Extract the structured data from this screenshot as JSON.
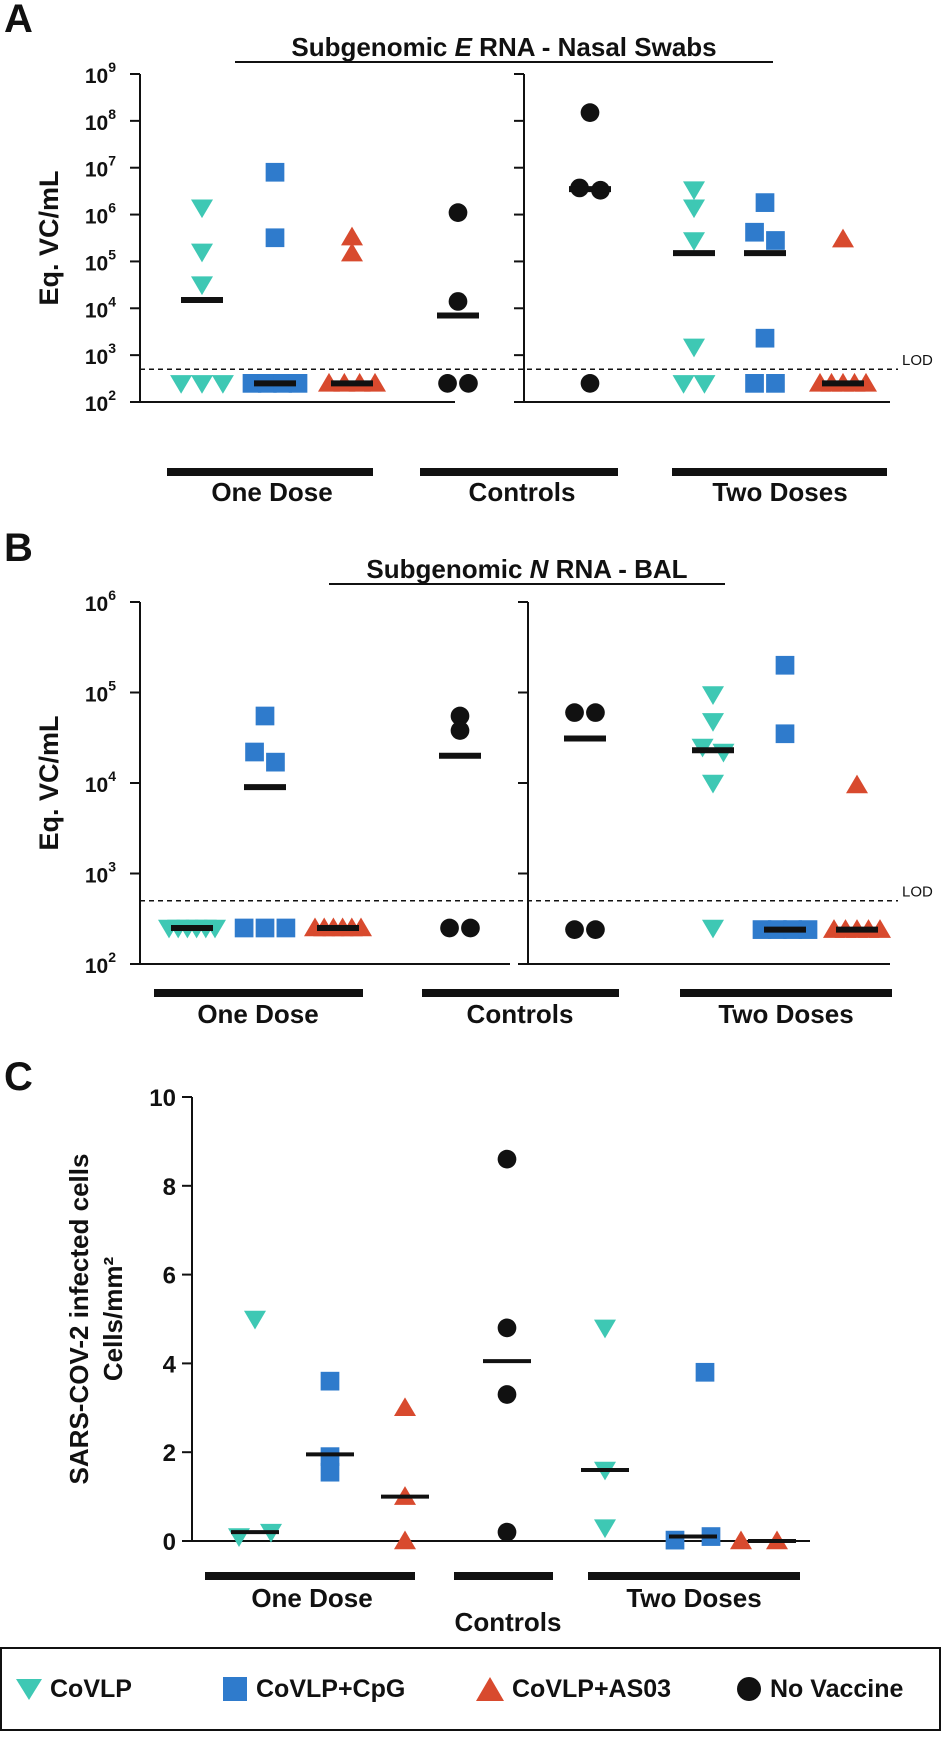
{
  "chart_data": [
    {
      "panel_label": "A",
      "type": "scatter",
      "title_parts": [
        "Subgenomic ",
        "E",
        " RNA - Nasal Swabs"
      ],
      "ylabel": "Eq. VC/mL",
      "yscale": "log",
      "ylim": [
        100,
        1000000000
      ],
      "y_ticks": [
        {
          "base": "10",
          "exp": "9"
        },
        {
          "base": "10",
          "exp": "8"
        },
        {
          "base": "10",
          "exp": "7"
        },
        {
          "base": "10",
          "exp": "6"
        },
        {
          "base": "10",
          "exp": "5"
        },
        {
          "base": "10",
          "exp": "4"
        },
        {
          "base": "10",
          "exp": "3"
        },
        {
          "base": "10",
          "exp": "2"
        }
      ],
      "lod": {
        "label": "LOD",
        "value": 500
      },
      "group_labels": [
        "One Dose",
        "Controls",
        "Two Doses"
      ],
      "series": [
        {
          "name": "One Dose CoVLP",
          "group": "One Dose",
          "marker": "CoVLP",
          "median": 15000,
          "values": [
            1400000,
            160000,
            32000,
            250,
            250,
            250
          ]
        },
        {
          "name": "One Dose CoVLP+CpG",
          "group": "One Dose",
          "marker": "CoVLP+CpG",
          "median": 250,
          "values": [
            8000000,
            320000,
            250,
            250,
            250,
            250
          ]
        },
        {
          "name": "One Dose CoVLP+AS03",
          "group": "One Dose",
          "marker": "CoVLP+AS03",
          "median": 250,
          "values": [
            330000,
            150000,
            250,
            250,
            250,
            250
          ]
        },
        {
          "name": "Controls (one-dose study)",
          "group": "Controls",
          "marker": "No Vaccine",
          "median": 7000,
          "values": [
            1100000,
            14000,
            250,
            250
          ]
        },
        {
          "name": "Controls (two-dose study)",
          "group": "Controls",
          "marker": "No Vaccine",
          "median": 3500000,
          "values": [
            150000000,
            3700000,
            3300000,
            250
          ]
        },
        {
          "name": "Two Doses CoVLP",
          "group": "Two Doses",
          "marker": "CoVLP",
          "median": 150000,
          "values": [
            3400000,
            1400000,
            280000,
            1500,
            250,
            250
          ]
        },
        {
          "name": "Two Doses CoVLP+CpG",
          "group": "Two Doses",
          "marker": "CoVLP+CpG",
          "median": 150000,
          "values": [
            1800000,
            420000,
            280000,
            2300,
            250,
            250
          ]
        },
        {
          "name": "Two Doses CoVLP+AS03",
          "group": "Two Doses",
          "marker": "CoVLP+AS03",
          "median": 250,
          "values": [
            300000,
            250,
            250,
            250,
            250,
            250
          ]
        }
      ]
    },
    {
      "panel_label": "B",
      "type": "scatter",
      "title_parts": [
        "Subgenomic ",
        "N",
        " RNA - BAL"
      ],
      "ylabel": "Eq. VC/mL",
      "yscale": "log",
      "ylim": [
        100,
        1000000
      ],
      "y_ticks": [
        {
          "base": "10",
          "exp": "6"
        },
        {
          "base": "10",
          "exp": "5"
        },
        {
          "base": "10",
          "exp": "4"
        },
        {
          "base": "10",
          "exp": "3"
        },
        {
          "base": "10",
          "exp": "2"
        }
      ],
      "lod": {
        "label": "LOD",
        "value": 500
      },
      "group_labels": [
        "One Dose",
        "Controls",
        "Two Doses"
      ],
      "series": [
        {
          "name": "One Dose CoVLP",
          "group": "One Dose",
          "marker": "CoVLP",
          "median": 250,
          "values": [
            250,
            250,
            250,
            250,
            250,
            250
          ]
        },
        {
          "name": "One Dose CoVLP+CpG",
          "group": "One Dose",
          "marker": "CoVLP+CpG",
          "median": 9000,
          "values": [
            55000,
            22000,
            17000,
            250,
            250,
            250
          ]
        },
        {
          "name": "One Dose CoVLP+AS03",
          "group": "One Dose",
          "marker": "CoVLP+AS03",
          "median": 250,
          "values": [
            250,
            250,
            250,
            250,
            250,
            250
          ]
        },
        {
          "name": "Controls (one-dose study)",
          "group": "Controls",
          "marker": "No Vaccine",
          "median": 20000,
          "values": [
            55000,
            38000,
            250,
            250
          ]
        },
        {
          "name": "Controls (two-dose study)",
          "group": "Controls",
          "marker": "No Vaccine",
          "median": 31000,
          "values": [
            60000,
            60000,
            240,
            240
          ]
        },
        {
          "name": "Two Doses CoVLP",
          "group": "Two Doses",
          "marker": "CoVLP",
          "median": 23000,
          "values": [
            95000,
            48000,
            25000,
            22000,
            10000,
            250
          ]
        },
        {
          "name": "Two Doses CoVLP+CpG",
          "group": "Two Doses",
          "marker": "CoVLP+CpG",
          "median": 240,
          "values": [
            200000,
            35000,
            240,
            240,
            240,
            240
          ]
        },
        {
          "name": "Two Doses CoVLP+AS03",
          "group": "Two Doses",
          "marker": "CoVLP+AS03",
          "median": 240,
          "values": [
            9500,
            240,
            240,
            240,
            240,
            240
          ]
        }
      ]
    },
    {
      "panel_label": "C",
      "type": "scatter",
      "title_parts": [],
      "ylabel_lines": [
        "SARS-COV-2 infected cells",
        "Cells/mm²"
      ],
      "yscale": "linear",
      "ylim": [
        0,
        10
      ],
      "y_ticks": [
        "0",
        "2",
        "4",
        "6",
        "8",
        "10"
      ],
      "group_labels": [
        "One Dose",
        "Controls",
        "Two Doses"
      ],
      "series": [
        {
          "name": "One Dose CoVLP",
          "group": "One Dose",
          "marker": "CoVLP",
          "median": 0.2,
          "values": [
            5.0,
            0.2,
            0.1
          ]
        },
        {
          "name": "One Dose CoVLP+CpG",
          "group": "One Dose",
          "marker": "CoVLP+CpG",
          "median": 1.95,
          "values": [
            3.6,
            1.9,
            1.55
          ]
        },
        {
          "name": "One Dose CoVLP+AS03",
          "group": "One Dose",
          "marker": "CoVLP+AS03",
          "median": 1.0,
          "values": [
            3.0,
            1.0,
            0.0
          ]
        },
        {
          "name": "Controls",
          "group": "Controls",
          "marker": "No Vaccine",
          "median": 4.05,
          "values": [
            8.6,
            4.8,
            3.3,
            0.2
          ]
        },
        {
          "name": "Two Doses CoVLP",
          "group": "Two Doses",
          "marker": "CoVLP",
          "median": 1.6,
          "values": [
            4.8,
            1.6,
            0.3
          ]
        },
        {
          "name": "Two Doses CoVLP+CpG",
          "group": "Two Doses",
          "marker": "CoVLP+CpG",
          "median": 0.1,
          "values": [
            3.8,
            0.1,
            0.02
          ]
        },
        {
          "name": "Two Doses CoVLP+AS03",
          "group": "Two Doses",
          "marker": "CoVLP+AS03",
          "median": 0.0,
          "values": [
            0.0,
            0.0
          ]
        }
      ]
    }
  ],
  "legend": {
    "items": [
      {
        "label": "CoVLP",
        "marker": "down-triangle",
        "color": "#3ec8b4"
      },
      {
        "label": "CoVLP+CpG",
        "marker": "square",
        "color": "#2f7bcc"
      },
      {
        "label": "CoVLP+AS03",
        "marker": "up-triangle",
        "color": "#d84a2e"
      },
      {
        "label": "No Vaccine",
        "marker": "circle",
        "color": "#111111"
      }
    ]
  }
}
